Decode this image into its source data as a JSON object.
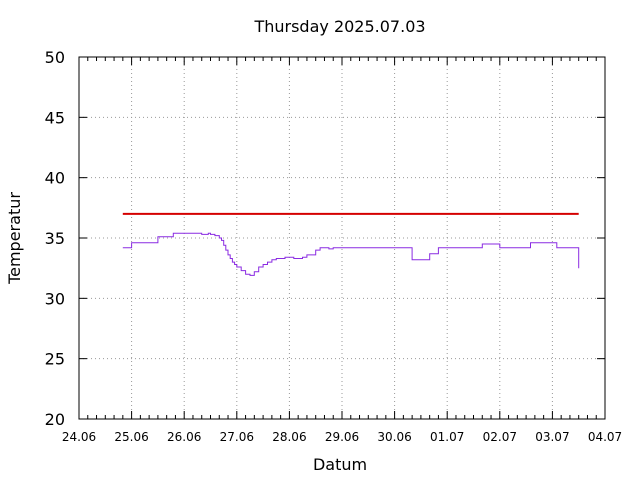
{
  "chart_data": {
    "type": "line",
    "title": "Thursday 2025.07.03",
    "xlabel": "Datum",
    "ylabel": "Temperatur",
    "ylim": [
      20,
      50
    ],
    "xlim": [
      "2025-06-24",
      "2025-07-04"
    ],
    "yticks": [
      "20",
      "25",
      "30",
      "35",
      "40",
      "45",
      "50"
    ],
    "xticks": [
      "24.06",
      "25.06",
      "26.06",
      "27.06",
      "28.06",
      "29.06",
      "30.06",
      "01.07",
      "02.07",
      "03.07",
      "04.07"
    ],
    "grid": true,
    "grid_style": "dotted",
    "series": [
      {
        "color": "#8a2be2",
        "x": [
          "2025-06-24 20:00",
          "2025-06-25 00:00",
          "2025-06-25 00:01",
          "2025-06-25 11:00",
          "2025-06-25 12:00",
          "2025-06-25 19:00",
          "2025-06-25 19:01",
          "2025-06-26 00:00",
          "2025-06-26 08:00",
          "2025-06-26 11:00",
          "2025-06-26 12:00",
          "2025-06-26 14:00",
          "2025-06-26 16:00",
          "2025-06-26 17:00",
          "2025-06-26 18:00",
          "2025-06-26 19:00",
          "2025-06-26 20:00",
          "2025-06-26 21:00",
          "2025-06-26 22:00",
          "2025-06-26 23:00",
          "2025-06-27 00:00",
          "2025-06-27 02:00",
          "2025-06-27 04:00",
          "2025-06-27 06:00",
          "2025-06-27 08:00",
          "2025-06-27 10:00",
          "2025-06-27 12:00",
          "2025-06-27 14:00",
          "2025-06-27 16:00",
          "2025-06-27 18:00",
          "2025-06-27 20:00",
          "2025-06-27 22:00",
          "2025-06-28 00:00",
          "2025-06-28 02:00",
          "2025-06-28 04:00",
          "2025-06-28 06:00",
          "2025-06-28 08:00",
          "2025-06-28 12:00",
          "2025-06-28 14:00",
          "2025-06-28 16:00",
          "2025-06-28 18:00",
          "2025-06-28 20:00",
          "2025-06-29 00:00",
          "2025-06-29 02:00",
          "2025-06-29 04:00",
          "2025-06-29 08:00",
          "2025-06-29 12:00",
          "2025-06-30 00:00",
          "2025-06-30 06:00",
          "2025-06-30 08:00",
          "2025-06-30 10:00",
          "2025-06-30 16:00",
          "2025-06-30 20:00",
          "2025-07-01 06:00",
          "2025-07-01 12:00",
          "2025-07-01 14:00",
          "2025-07-01 16:00",
          "2025-07-02 00:00",
          "2025-07-02 12:00",
          "2025-07-02 14:00",
          "2025-07-02 16:00",
          "2025-07-03 00:00",
          "2025-07-03 02:00",
          "2025-07-03 04:00",
          "2025-07-03 06:00",
          "2025-07-03 08:00",
          "2025-07-03 10:00",
          "2025-07-03 12:00"
        ],
        "values": [
          34.2,
          34.2,
          34.6,
          34.6,
          35.1,
          35.1,
          35.4,
          35.4,
          35.3,
          35.4,
          35.3,
          35.2,
          35.0,
          34.8,
          34.4,
          34.0,
          33.6,
          33.3,
          33.0,
          32.8,
          32.6,
          32.3,
          32.0,
          31.9,
          32.2,
          32.6,
          32.8,
          33.0,
          33.2,
          33.3,
          33.3,
          33.4,
          33.4,
          33.3,
          33.3,
          33.4,
          33.6,
          34.0,
          34.2,
          34.2,
          34.1,
          34.2,
          34.2,
          34.2,
          34.2,
          34.2,
          34.2,
          34.2,
          34.2,
          33.2,
          33.2,
          33.7,
          34.2,
          34.2,
          34.2,
          34.2,
          34.5,
          34.2,
          34.2,
          34.6,
          34.6,
          34.6,
          34.2,
          34.2,
          34.2,
          34.2,
          34.2,
          32.5
        ]
      },
      {
        "color": "#d40000",
        "x": [
          "2025-06-24 20:00",
          "2025-07-03 12:00"
        ],
        "values": [
          37.0,
          37.0
        ]
      }
    ]
  }
}
